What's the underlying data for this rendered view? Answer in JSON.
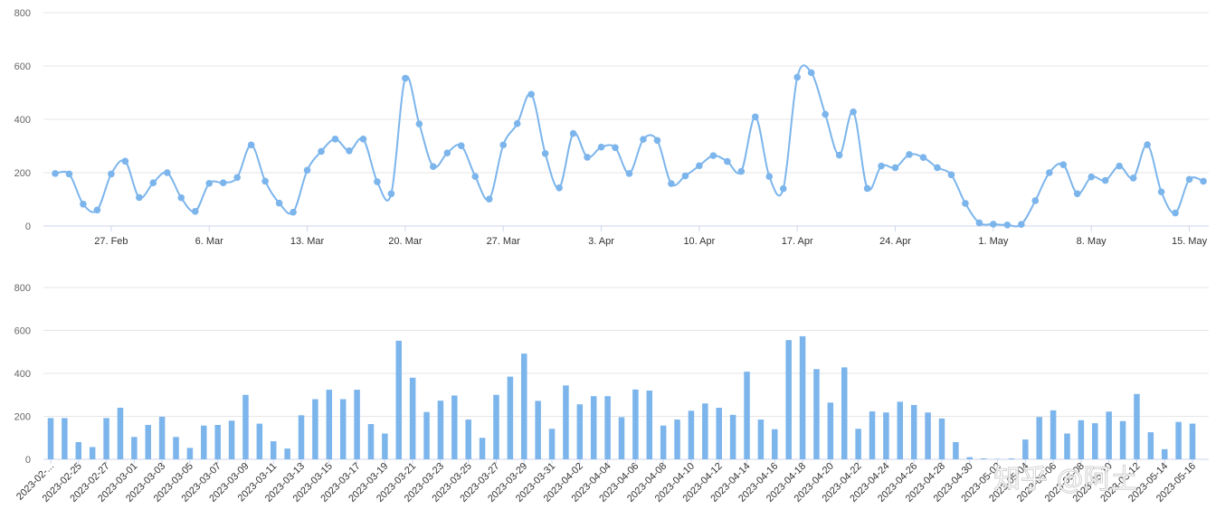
{
  "watermark": "知乎 @阿土",
  "chart_data": [
    {
      "type": "line",
      "smooth": true,
      "markers": true,
      "color": "#7cb5ec",
      "ylim": [
        0,
        800
      ],
      "yticks": [
        0,
        200,
        400,
        600,
        800
      ],
      "x_start": "2023-02-23",
      "x_end": "2023-05-16",
      "x_tick_dates": [
        "2023-02-27",
        "2023-03-06",
        "2023-03-13",
        "2023-03-20",
        "2023-03-27",
        "2023-04-03",
        "2023-04-10",
        "2023-04-17",
        "2023-04-24",
        "2023-05-01",
        "2023-05-08",
        "2023-05-15"
      ],
      "x_tick_labels": [
        "27. Feb",
        "6. Mar",
        "13. Mar",
        "20. Mar",
        "27. Mar",
        "3. Apr",
        "10. Apr",
        "17. Apr",
        "24. Apr",
        "1. May",
        "8. May",
        "15. May"
      ],
      "grid": true,
      "legend": "none",
      "series": [
        {
          "values": [
            197,
            195,
            82,
            60,
            195,
            243,
            107,
            162,
            200,
            106,
            55,
            160,
            162,
            182,
            304,
            168,
            86,
            52,
            209,
            280,
            326,
            282,
            326,
            166,
            121,
            554,
            383,
            223,
            274,
            301,
            186,
            101,
            304,
            384,
            494,
            272,
            143,
            347,
            258,
            296,
            294,
            197,
            325,
            321,
            159,
            188,
            226,
            264,
            242,
            205,
            409,
            186,
            140,
            558,
            575,
            419,
            266,
            428,
            141,
            225,
            219,
            268,
            257,
            219,
            192,
            85,
            12,
            7,
            4,
            6,
            95,
            200,
            230,
            121,
            184,
            171,
            225,
            180,
            305,
            128,
            49,
            175,
            168
          ]
        }
      ]
    },
    {
      "type": "bar",
      "color": "#7cb5ec",
      "ylim": [
        0,
        800
      ],
      "yticks": [
        0,
        200,
        400,
        600,
        800
      ],
      "x_start": "2023-02-23",
      "x_end": "2023-05-16",
      "grid": true,
      "legend": "none",
      "x_tick_labels": [
        "2023-02-...",
        "2023-02-25",
        "2023-02-27",
        "2023-03-01",
        "2023-03-03",
        "2023-03-05",
        "2023-03-07",
        "2023-03-09",
        "2023-03-11",
        "2023-03-13",
        "2023-03-15",
        "2023-03-17",
        "2023-03-19",
        "2023-03-21",
        "2023-03-23",
        "2023-03-25",
        "2023-03-27",
        "2023-03-29",
        "2023-03-31",
        "2023-04-02",
        "2023-04-04",
        "2023-04-06",
        "2023-04-08",
        "2023-04-10",
        "2023-04-12",
        "2023-04-14",
        "2023-04-16",
        "2023-04-18",
        "2023-04-20",
        "2023-04-22",
        "2023-04-24",
        "2023-04-26",
        "2023-04-28",
        "2023-04-30",
        "2023-05-02",
        "2023-05-04",
        "2023-05-06",
        "2023-05-08",
        "2023-05-10",
        "2023-05-12",
        "2023-05-14",
        "2023-05-16"
      ],
      "series": [
        {
          "values": [
            192,
            192,
            80,
            57,
            192,
            240,
            104,
            160,
            198,
            104,
            53,
            157,
            160,
            180,
            300,
            166,
            84,
            50,
            205,
            280,
            324,
            280,
            324,
            164,
            120,
            552,
            380,
            220,
            273,
            297,
            185,
            100,
            300,
            385,
            492,
            272,
            142,
            344,
            256,
            294,
            294,
            196,
            325,
            320,
            157,
            185,
            226,
            260,
            240,
            207,
            408,
            185,
            140,
            555,
            573,
            420,
            264,
            428,
            142,
            223,
            218,
            268,
            253,
            218,
            190,
            80,
            10,
            4,
            2,
            4,
            92,
            197,
            228,
            120,
            182,
            168,
            222,
            178,
            304,
            126,
            47,
            174,
            166
          ]
        }
      ]
    }
  ]
}
